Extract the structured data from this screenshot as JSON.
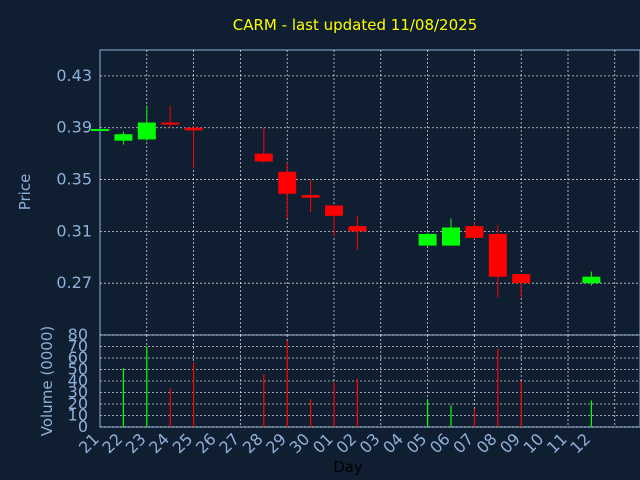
{
  "chart_data": {
    "type": "candlestick",
    "title": "CARM - last updated 11/08/2025",
    "ylabel": "Price",
    "y2label": "Volume (0000)",
    "xlabel": "Day",
    "categories": [
      "21",
      "22",
      "23",
      "24",
      "25",
      "26",
      "27",
      "28",
      "29",
      "30",
      "01",
      "02",
      "03",
      "04",
      "05",
      "06",
      "07",
      "08",
      "09",
      "10",
      "11",
      "12"
    ],
    "open": [
      0.389,
      0.38,
      0.381,
      0.394,
      0.39,
      null,
      null,
      0.37,
      0.356,
      0.338,
      0.33,
      0.314,
      null,
      null,
      0.299,
      0.299,
      0.314,
      0.308,
      0.277,
      null,
      null,
      0.27
    ],
    "high": [
      0.389,
      0.387,
      0.407,
      0.407,
      0.391,
      null,
      null,
      0.39,
      0.363,
      0.35,
      0.33,
      0.322,
      null,
      null,
      0.309,
      0.32,
      0.317,
      0.315,
      0.277,
      null,
      null,
      0.279
    ],
    "low": [
      0.389,
      0.377,
      0.38,
      0.39,
      0.359,
      null,
      null,
      0.363,
      0.32,
      0.325,
      0.306,
      0.296,
      null,
      null,
      0.299,
      0.299,
      0.304,
      0.259,
      0.259,
      null,
      null,
      0.268
    ],
    "close": [
      0.389,
      0.385,
      0.394,
      0.393,
      0.388,
      null,
      null,
      0.364,
      0.339,
      0.336,
      0.322,
      0.31,
      null,
      null,
      0.308,
      0.313,
      0.305,
      0.275,
      0.27,
      null,
      null,
      0.275
    ],
    "volume": [
      null,
      51,
      70,
      34,
      56,
      null,
      null,
      46,
      75,
      24,
      39,
      42,
      null,
      null,
      24,
      19,
      16,
      68,
      40,
      null,
      null,
      23
    ],
    "up_color": "#00ff00",
    "down_color": "#ff0000",
    "title_color": "#ffff00",
    "ylim": [
      0.23,
      0.45
    ],
    "yticks": [
      0.27,
      0.31,
      0.35,
      0.39,
      0.43
    ],
    "y2lim": [
      0,
      80
    ],
    "y2ticks": [
      0,
      10,
      20,
      30,
      40,
      50,
      60,
      70,
      80
    ],
    "grid": true
  }
}
